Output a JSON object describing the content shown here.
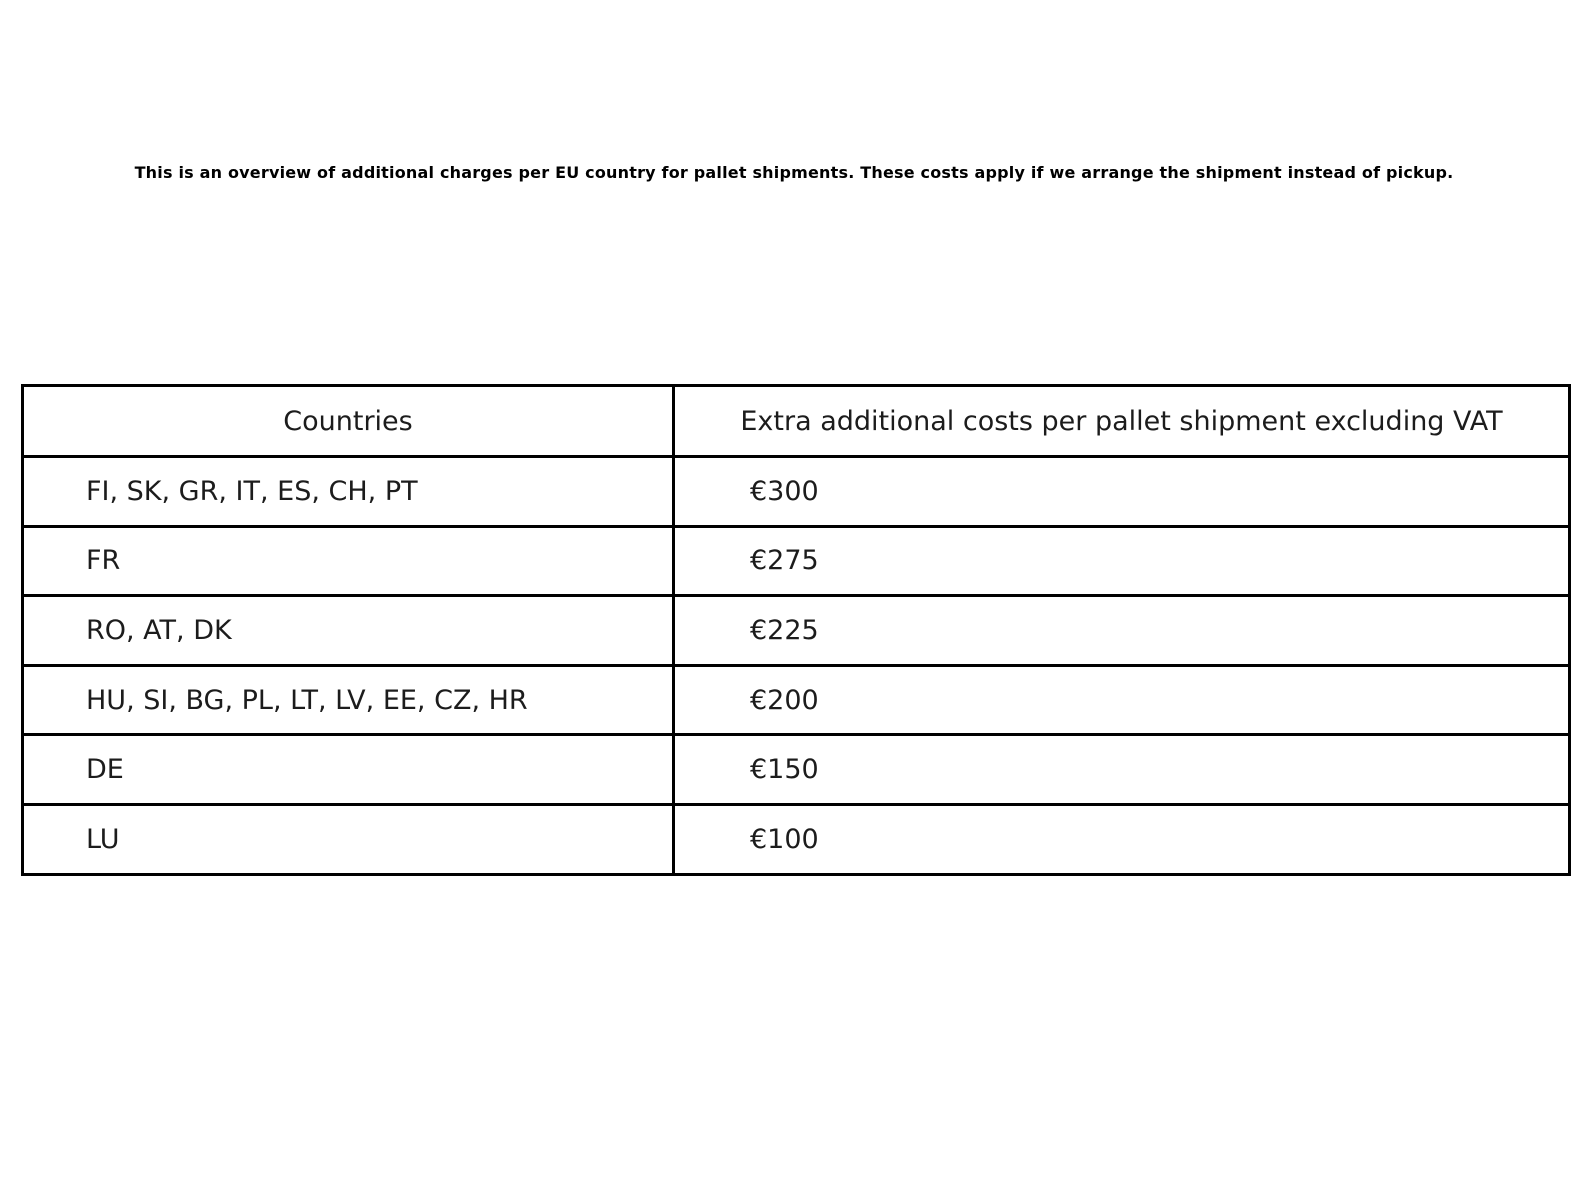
{
  "page": {
    "intro": "This is an overview of additional charges per EU country for pallet shipments. These costs apply if we arrange the shipment instead of pickup."
  },
  "table": {
    "headers": {
      "countries": "Countries",
      "costs": "Extra additional costs per pallet shipment excluding VAT"
    },
    "rows": [
      {
        "countries": "FI, SK, GR, IT, ES, CH, PT",
        "cost": "€300"
      },
      {
        "countries": "FR",
        "cost": "€275"
      },
      {
        "countries": "RO, AT, DK",
        "cost": "€225"
      },
      {
        "countries": "HU, SI, BG, PL, LT, LV, EE, CZ, HR",
        "cost": "€200"
      },
      {
        "countries": "DE",
        "cost": "€150"
      },
      {
        "countries": "LU",
        "cost": "€100"
      }
    ],
    "style": {
      "border_color": "#000000",
      "text_color": "#1c1c1c",
      "background": "#ffffff"
    }
  }
}
